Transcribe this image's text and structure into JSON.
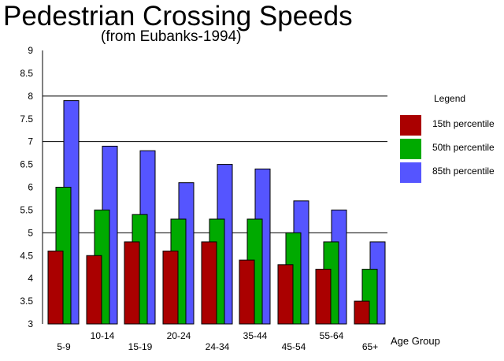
{
  "chart_data": {
    "type": "bar",
    "title": "Pedestrian Crossing Speeds",
    "subtitle": "(from Eubanks-1994)",
    "xlabel": "Age Group",
    "ylabel": "",
    "ylim": [
      3,
      9
    ],
    "yticks": [
      "3",
      "3.5",
      "4",
      "4.5",
      "5",
      "5.5",
      "6",
      "6.5",
      "7",
      "7.5",
      "8",
      "8.5",
      "9"
    ],
    "grid": "horizontal lines at 5, 7 and 8",
    "legend_title": "Legend",
    "legend_position": "right",
    "categories": [
      "5-9",
      "10-14",
      "15-19",
      "20-24",
      "24-34",
      "35-44",
      "45-54",
      "55-64",
      "65+"
    ],
    "series": [
      {
        "name": "15th percentile",
        "color": "#aa0000",
        "values": [
          4.6,
          4.5,
          4.8,
          4.6,
          4.8,
          4.4,
          4.3,
          4.2,
          3.5
        ]
      },
      {
        "name": "50th percentile",
        "color": "#00aa00",
        "values": [
          6.0,
          5.5,
          5.4,
          5.3,
          5.3,
          5.3,
          5.0,
          4.8,
          4.2
        ]
      },
      {
        "name": "85th percentile",
        "color": "#5555ff",
        "values": [
          7.9,
          6.9,
          6.8,
          6.1,
          6.5,
          6.4,
          5.7,
          5.5,
          4.8
        ]
      }
    ]
  }
}
